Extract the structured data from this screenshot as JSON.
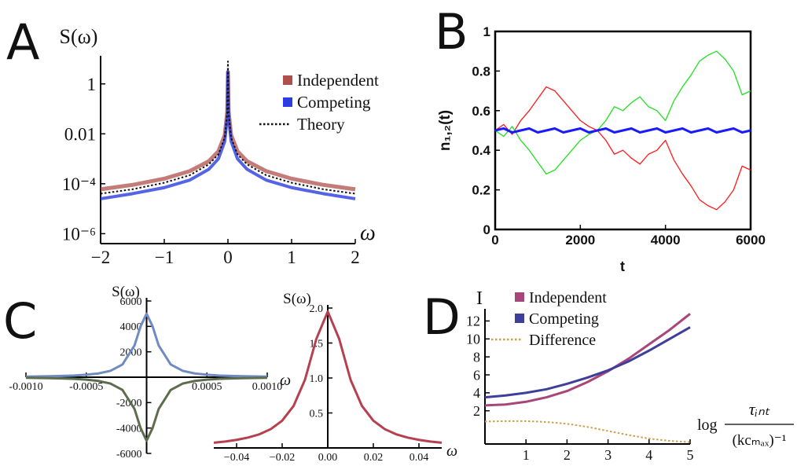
{
  "chart_data": [
    {
      "type": "line",
      "label": "A",
      "ylabel": "S(ω)",
      "xlabel": "ω",
      "ylog": true,
      "legend": "upper right",
      "x": [
        -2,
        -1.5,
        -1,
        -0.6,
        -0.3,
        -0.15,
        -0.05,
        -0.01,
        0,
        0.01,
        0.05,
        0.15,
        0.3,
        0.6,
        1,
        1.5,
        2
      ],
      "series": [
        {
          "name": "Independent",
          "color": "#b0504c",
          "values": [
            6e-05,
            9e-05,
            0.00016,
            0.00032,
            0.0008,
            0.002,
            0.009,
            0.08,
            3,
            0.08,
            0.009,
            0.002,
            0.0008,
            0.00032,
            0.00016,
            9e-05,
            6e-05
          ]
        },
        {
          "name": "Competing",
          "color": "#2b3de0",
          "values": [
            2.5e-05,
            4e-05,
            7e-05,
            0.00014,
            0.00038,
            0.001,
            0.005,
            0.05,
            3,
            0.05,
            0.005,
            0.001,
            0.00038,
            0.00014,
            7e-05,
            4e-05,
            2.5e-05
          ]
        },
        {
          "name": "Theory",
          "color": "#111111",
          "linestyle": "dotted",
          "values": [
            4e-05,
            6e-05,
            0.00011,
            0.00022,
            0.0006,
            0.0015,
            0.007,
            0.07,
            8,
            0.07,
            0.007,
            0.0015,
            0.0006,
            0.00022,
            0.00011,
            6e-05,
            4e-05
          ]
        }
      ],
      "xlim": [
        -2,
        2
      ],
      "xticks": [
        {
          "value": -2,
          "label": "−2"
        },
        {
          "value": -1,
          "label": "−1"
        },
        0,
        1,
        2
      ],
      "ylim": [
        4e-07,
        10
      ],
      "yticks": [
        {
          "value": 1e-06,
          "label": "10⁻⁶"
        },
        {
          "value": 0.0001,
          "label": "10⁻⁴"
        },
        0.01,
        1
      ]
    },
    {
      "type": "line",
      "label": "B",
      "ylabel": "n₁,₂(t)",
      "xlabel": "t",
      "x": [
        0,
        200,
        400,
        600,
        800,
        1000,
        1200,
        1400,
        1600,
        1800,
        2000,
        2200,
        2400,
        2600,
        2800,
        3000,
        3200,
        3400,
        3600,
        3800,
        4000,
        4200,
        4400,
        4600,
        4800,
        5000,
        5200,
        5400,
        5600,
        5800,
        6000
      ],
      "series": [
        {
          "color": "#ff1a1a",
          "values": [
            0.5,
            0.53,
            0.48,
            0.55,
            0.6,
            0.66,
            0.72,
            0.7,
            0.65,
            0.6,
            0.55,
            0.52,
            0.5,
            0.45,
            0.38,
            0.4,
            0.36,
            0.33,
            0.38,
            0.4,
            0.45,
            0.35,
            0.28,
            0.22,
            0.15,
            0.12,
            0.1,
            0.14,
            0.2,
            0.32,
            0.3
          ]
        },
        {
          "color": "#22e022",
          "values": [
            0.5,
            0.47,
            0.52,
            0.45,
            0.4,
            0.34,
            0.28,
            0.3,
            0.35,
            0.4,
            0.45,
            0.48,
            0.5,
            0.55,
            0.62,
            0.6,
            0.64,
            0.67,
            0.62,
            0.6,
            0.55,
            0.65,
            0.72,
            0.78,
            0.85,
            0.88,
            0.9,
            0.86,
            0.8,
            0.68,
            0.7
          ]
        },
        {
          "color": "#1a1aff",
          "values": [
            0.5,
            0.51,
            0.49,
            0.5,
            0.51,
            0.49,
            0.5,
            0.51,
            0.49,
            0.5,
            0.51,
            0.49,
            0.5,
            0.51,
            0.49,
            0.5,
            0.51,
            0.49,
            0.5,
            0.51,
            0.49,
            0.5,
            0.51,
            0.49,
            0.5,
            0.51,
            0.49,
            0.5,
            0.51,
            0.49,
            0.5
          ]
        }
      ],
      "xlim": [
        0,
        6000
      ],
      "xticks": [
        0,
        2000,
        4000,
        6000
      ],
      "ylim": [
        0,
        1
      ],
      "yticks": [
        0,
        0.2,
        0.4,
        0.6,
        0.8,
        1
      ]
    },
    {
      "type": "line",
      "label": "C",
      "ylabel": "S(ω)",
      "xlabel": "ω",
      "x": [
        -0.001,
        -0.0009,
        -0.0008,
        -0.0007,
        -0.0006,
        -0.0005,
        -0.0004,
        -0.0003,
        -0.0002,
        -0.0001,
        -5e-05,
        0,
        5e-05,
        0.0001,
        0.0002,
        0.0003,
        0.0004,
        0.0005,
        0.0006,
        0.0007,
        0.0008,
        0.0009,
        0.001
      ],
      "series": [
        {
          "color": "#6f8bc2",
          "values": [
            50,
            61,
            77,
            100,
            135,
            192,
            294,
            500,
            1000,
            2500,
            4000,
            5000,
            4000,
            2500,
            1000,
            500,
            294,
            192,
            135,
            100,
            77,
            61,
            50
          ]
        },
        {
          "color": "#5d6e4d",
          "values": [
            -50,
            -61,
            -77,
            -100,
            -135,
            -192,
            -294,
            -500,
            -1000,
            -2500,
            -4000,
            -5000,
            -4000,
            -2500,
            -1000,
            -500,
            -294,
            -192,
            -135,
            -100,
            -77,
            -61,
            -50
          ]
        }
      ],
      "xlim": [
        -0.001,
        0.001
      ],
      "xticks": [
        {
          "value": -0.001,
          "label": "-0.0010"
        },
        -0.0005,
        0.0005,
        {
          "value": 0.001,
          "label": "0.0010"
        }
      ],
      "ylim": [
        -6000,
        6000
      ],
      "yticks": [
        -6000,
        -4000,
        -2000,
        2000,
        4000,
        6000
      ]
    },
    {
      "type": "line",
      "ylabel": "S(ω)",
      "xlabel": "ω",
      "x": [
        -0.05,
        -0.045,
        -0.04,
        -0.035,
        -0.03,
        -0.025,
        -0.02,
        -0.015,
        -0.01,
        -0.005,
        0,
        0.005,
        0.01,
        0.015,
        0.02,
        0.025,
        0.03,
        0.035,
        0.04,
        0.045,
        0.05
      ],
      "series": [
        {
          "color": "#b5404f",
          "values": [
            0.075,
            0.091,
            0.115,
            0.148,
            0.195,
            0.269,
            0.39,
            0.6,
            0.975,
            1.56,
            1.95,
            1.56,
            0.975,
            0.6,
            0.39,
            0.269,
            0.195,
            0.148,
            0.115,
            0.091,
            0.075
          ]
        }
      ],
      "xlim": [
        -0.05,
        0.05
      ],
      "xticks": [
        {
          "value": -0.04,
          "label": "−0.04"
        },
        {
          "value": -0.02,
          "label": "−0.02"
        },
        {
          "value": 0,
          "label": "0.00"
        },
        {
          "value": 0.02,
          "label": "0.02"
        },
        {
          "value": 0.04,
          "label": "0.04"
        }
      ],
      "ylim": [
        0,
        2
      ],
      "yticks": [
        0.5,
        {
          "value": 1,
          "label": "1.0"
        },
        1.5,
        {
          "value": 2,
          "label": "2.0"
        }
      ]
    },
    {
      "type": "line",
      "label": "D",
      "ylabel": "I",
      "legend": "upper left",
      "xlabel": {
        "prefix": "log",
        "numerator": "τᵢₙₜ",
        "denominator": "(kcₘₐₓ)⁻¹"
      },
      "x": [
        0,
        0.5,
        1,
        1.5,
        2,
        2.5,
        3,
        3.5,
        4,
        4.5,
        5
      ],
      "series": [
        {
          "name": "Independent",
          "color": "#a8467a",
          "values": [
            2.6,
            2.7,
            3,
            3.5,
            4.2,
            5.2,
            6.4,
            7.8,
            9.4,
            11,
            12.8
          ]
        },
        {
          "name": "Competing",
          "color": "#3d3f9a",
          "values": [
            3.5,
            3.7,
            4,
            4.4,
            5,
            5.7,
            6.5,
            7.5,
            8.7,
            10,
            11.3
          ]
        },
        {
          "name": "Difference",
          "color": "#c9a24a",
          "linestyle": "dotted",
          "values": [
            0.8,
            0.85,
            0.85,
            0.75,
            0.55,
            0.2,
            -0.25,
            -0.7,
            -1.1,
            -1.35,
            -1.5
          ]
        }
      ],
      "xlim": [
        0,
        5
      ],
      "xticks": [
        1,
        2,
        3,
        4,
        5
      ],
      "ylim": [
        -1.7,
        13
      ],
      "yticks": [
        2,
        4,
        6,
        8,
        10,
        12
      ]
    }
  ]
}
